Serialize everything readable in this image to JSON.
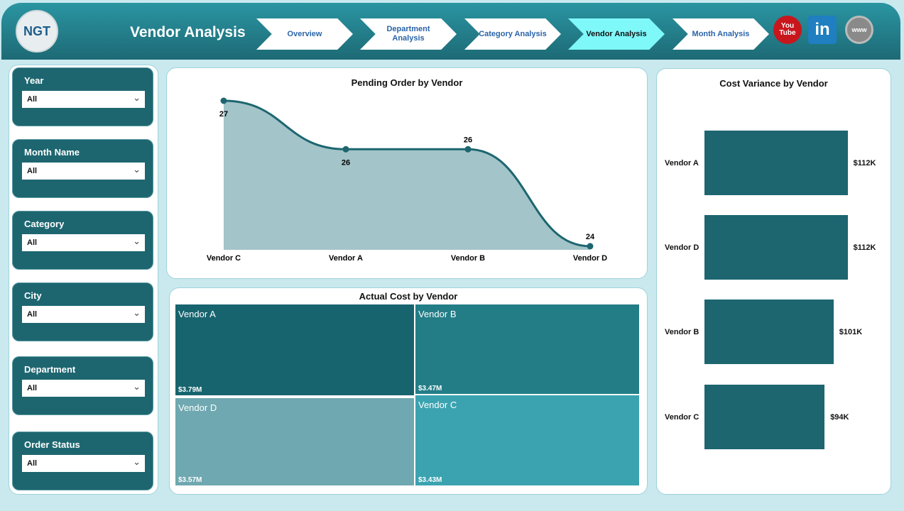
{
  "header": {
    "logo_text": "NGT",
    "title": "Vendor Analysis",
    "nav": [
      {
        "label": "Overview"
      },
      {
        "label": "Department Analysis"
      },
      {
        "label": "Category Analysis"
      },
      {
        "label": "Vendor Analysis",
        "active": true
      },
      {
        "label": "Month Analysis"
      }
    ],
    "social": [
      {
        "icon": "youtube-icon",
        "label": "You Tube",
        "color": "#c8161d"
      },
      {
        "icon": "linkedin-icon",
        "label": "in",
        "color": "#1f7fc0"
      },
      {
        "icon": "globe-icon",
        "label": "www",
        "color": "#8a8a8a"
      }
    ]
  },
  "filters": [
    {
      "label": "Year",
      "value": "All"
    },
    {
      "label": "Month Name",
      "value": "All"
    },
    {
      "label": "Category",
      "value": "All"
    },
    {
      "label": "City",
      "value": "All"
    },
    {
      "label": "Department",
      "value": "All"
    },
    {
      "label": "Order Status",
      "value": "All"
    }
  ],
  "chart_data": [
    {
      "type": "area",
      "title": "Pending Order by Vendor",
      "categories": [
        "Vendor C",
        "Vendor A",
        "Vendor B",
        "Vendor D"
      ],
      "values": [
        27,
        26,
        26,
        24
      ],
      "data_labels": [
        "27",
        "26",
        "26",
        "24"
      ],
      "color": "#1d6670"
    },
    {
      "type": "treemap",
      "title": "Actual Cost by Vendor",
      "items": [
        {
          "name": "Vendor A",
          "value": 3.79,
          "label": "$3.79M",
          "color": "#17646f"
        },
        {
          "name": "Vendor B",
          "value": 3.47,
          "label": "$3.47M",
          "color": "#237d87"
        },
        {
          "name": "Vendor D",
          "value": 3.57,
          "label": "$3.57M",
          "color": "#6fa8b0"
        },
        {
          "name": "Vendor C",
          "value": 3.43,
          "label": "$3.43M",
          "color": "#3ba3b0"
        }
      ]
    },
    {
      "type": "bar",
      "orientation": "horizontal",
      "title": "Cost Variance by Vendor",
      "categories": [
        "Vendor A",
        "Vendor D",
        "Vendor B",
        "Vendor C"
      ],
      "values": [
        112,
        112,
        101,
        94
      ],
      "data_labels": [
        "$112K",
        "$112K",
        "$101K",
        "$94K"
      ],
      "unit": "K $",
      "color": "#1d6670"
    }
  ]
}
